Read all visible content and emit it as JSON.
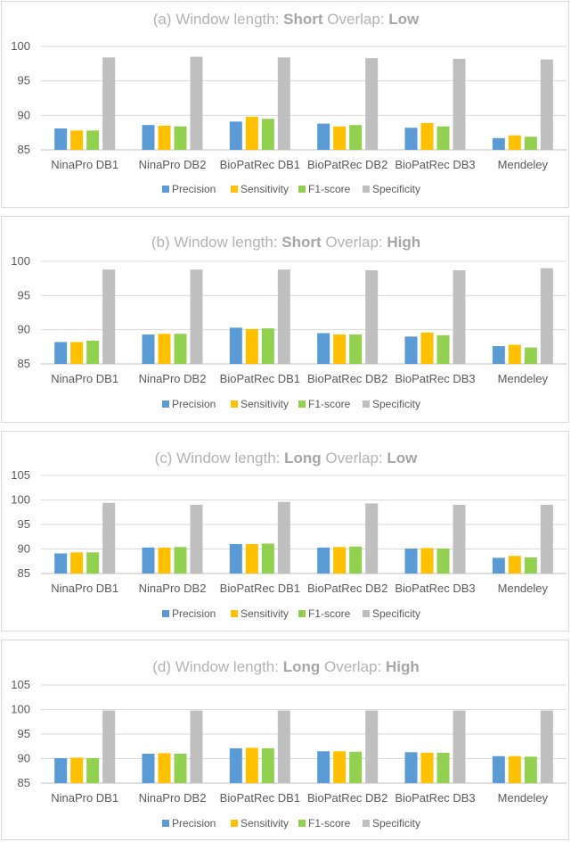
{
  "chart_data": [
    {
      "type": "bar",
      "title": {
        "prefix": "(a) Window length: ",
        "length": "Short",
        "mid": " Overlap: ",
        "overlap": "Low"
      },
      "categories": [
        "NinaPro DB1",
        "NinaPro DB2",
        "BioPatRec DB1",
        "BioPatRec DB2",
        "BioPatRec DB3",
        "Mendeley"
      ],
      "yticks": [
        85,
        90,
        95,
        100
      ],
      "ylim": [
        85,
        100
      ],
      "series": [
        {
          "name": "Precision",
          "color": "#5b9bd5",
          "values": [
            88.1,
            88.6,
            89.1,
            88.8,
            88.2,
            86.7
          ]
        },
        {
          "name": "Sensitivity",
          "color": "#ffc000",
          "values": [
            87.8,
            88.5,
            89.8,
            88.4,
            88.9,
            87.1
          ]
        },
        {
          "name": "F1-score",
          "color": "#92d050",
          "values": [
            87.8,
            88.4,
            89.5,
            88.6,
            88.4,
            86.9
          ]
        },
        {
          "name": "Specificity",
          "color": "#bfbfbf",
          "values": [
            98.4,
            98.5,
            98.4,
            98.3,
            98.2,
            98.1
          ]
        }
      ]
    },
    {
      "type": "bar",
      "title": {
        "prefix": "(b) Window length: ",
        "length": "Short",
        "mid": " Overlap: ",
        "overlap": "High"
      },
      "categories": [
        "NinaPro DB1",
        "NinaPro DB2",
        "BioPatRec DB1",
        "BioPatRec DB2",
        "BioPatRec DB3",
        "Mendeley"
      ],
      "yticks": [
        85,
        90,
        95,
        100
      ],
      "ylim": [
        85,
        100
      ],
      "series": [
        {
          "name": "Precision",
          "color": "#5b9bd5",
          "values": [
            88.2,
            89.3,
            90.3,
            89.5,
            89.0,
            87.6
          ]
        },
        {
          "name": "Sensitivity",
          "color": "#ffc000",
          "values": [
            88.2,
            89.4,
            90.1,
            89.3,
            89.6,
            87.8
          ]
        },
        {
          "name": "F1-score",
          "color": "#92d050",
          "values": [
            88.4,
            89.4,
            90.2,
            89.3,
            89.2,
            87.4
          ]
        },
        {
          "name": "Specificity",
          "color": "#bfbfbf",
          "values": [
            98.8,
            98.8,
            98.8,
            98.7,
            98.7,
            99.0
          ]
        }
      ]
    },
    {
      "type": "bar",
      "title": {
        "prefix": "(c) Window length: ",
        "length": "Long",
        "mid": " Overlap: ",
        "overlap": "Low"
      },
      "categories": [
        "NinaPro DB1",
        "NinaPro DB2",
        "BioPatRec DB1",
        "BioPatRec DB2",
        "BioPatRec DB3",
        "Mendeley"
      ],
      "yticks": [
        85,
        90,
        95,
        100,
        105
      ],
      "ylim": [
        85,
        105
      ],
      "series": [
        {
          "name": "Precision",
          "color": "#5b9bd5",
          "values": [
            89.1,
            90.3,
            91.0,
            90.3,
            90.1,
            88.2
          ]
        },
        {
          "name": "Sensitivity",
          "color": "#ffc000",
          "values": [
            89.3,
            90.3,
            91.0,
            90.4,
            90.2,
            88.6
          ]
        },
        {
          "name": "F1-score",
          "color": "#92d050",
          "values": [
            89.3,
            90.4,
            91.1,
            90.5,
            90.1,
            88.3
          ]
        },
        {
          "name": "Specificity",
          "color": "#bfbfbf",
          "values": [
            99.4,
            99.0,
            99.6,
            99.3,
            99.0,
            99.0
          ]
        }
      ]
    },
    {
      "type": "bar",
      "title": {
        "prefix": "(d) Window length: ",
        "length": "Long",
        "mid": " Overlap: ",
        "overlap": "High"
      },
      "categories": [
        "NinaPro DB1",
        "NinaPro DB2",
        "BioPatRec DB1",
        "BioPatRec DB2",
        "BioPatRec DB3",
        "Mendeley"
      ],
      "yticks": [
        85,
        90,
        95,
        100,
        105
      ],
      "ylim": [
        85,
        105
      ],
      "series": [
        {
          "name": "Precision",
          "color": "#5b9bd5",
          "values": [
            90.1,
            91.0,
            92.1,
            91.5,
            91.3,
            90.5
          ]
        },
        {
          "name": "Sensitivity",
          "color": "#ffc000",
          "values": [
            90.2,
            91.1,
            92.2,
            91.5,
            91.2,
            90.5
          ]
        },
        {
          "name": "F1-score",
          "color": "#92d050",
          "values": [
            90.1,
            91.0,
            92.1,
            91.4,
            91.2,
            90.4
          ]
        },
        {
          "name": "Specificity",
          "color": "#bfbfbf",
          "values": [
            99.8,
            99.8,
            99.8,
            99.8,
            99.8,
            99.8
          ]
        }
      ]
    }
  ]
}
